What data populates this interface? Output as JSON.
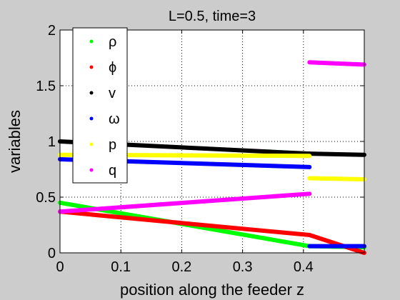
{
  "chart_data": {
    "type": "scatter",
    "title": "L=0.5, time=3",
    "xlabel": "position along the feeder z",
    "ylabel": "variables",
    "xlim": [
      0,
      0.5
    ],
    "ylim": [
      0,
      2
    ],
    "xticks": [
      0,
      0.1,
      0.2,
      0.3,
      0.4
    ],
    "xtick_labels": [
      "0",
      "0.1",
      "0.2",
      "0.3",
      "0.4"
    ],
    "yticks": [
      0,
      0.5,
      1,
      1.5,
      2
    ],
    "ytick_labels": [
      "0",
      "0.5",
      "1",
      "1.5",
      "2"
    ],
    "grid": true,
    "legend_position": "top-left",
    "series": [
      {
        "name": "ρ",
        "color": "#00ff00",
        "segments": [
          [
            [
              0,
              0.45
            ],
            [
              0.41,
              0.06
            ]
          ],
          [
            [
              0.41,
              0.06
            ],
            [
              0.5,
              0.05
            ]
          ]
        ]
      },
      {
        "name": "ϕ",
        "color": "#ff0000",
        "segments": [
          [
            [
              0,
              0.37
            ],
            [
              0.41,
              0.16
            ]
          ],
          [
            [
              0.41,
              0.16
            ],
            [
              0.5,
              0.0
            ]
          ]
        ]
      },
      {
        "name": "v",
        "color": "#000000",
        "segments": [
          [
            [
              0,
              1.0
            ],
            [
              0.41,
              0.89
            ]
          ],
          [
            [
              0.41,
              0.89
            ],
            [
              0.5,
              0.88
            ]
          ]
        ]
      },
      {
        "name": "ω",
        "color": "#0000ff",
        "segments": [
          [
            [
              0,
              0.84
            ],
            [
              0.41,
              0.77
            ]
          ],
          [
            [
              0.41,
              0.06
            ],
            [
              0.5,
              0.06
            ]
          ]
        ]
      },
      {
        "name": "p",
        "color": "#ffff00",
        "segments": [
          [
            [
              0,
              0.88
            ],
            [
              0.41,
              0.87
            ]
          ],
          [
            [
              0.41,
              0.67
            ],
            [
              0.5,
              0.66
            ]
          ]
        ]
      },
      {
        "name": "q",
        "color": "#ff00ff",
        "segments": [
          [
            [
              0,
              0.37
            ],
            [
              0.41,
              0.53
            ]
          ],
          [
            [
              0.41,
              1.71
            ],
            [
              0.5,
              1.69
            ]
          ]
        ]
      }
    ]
  }
}
